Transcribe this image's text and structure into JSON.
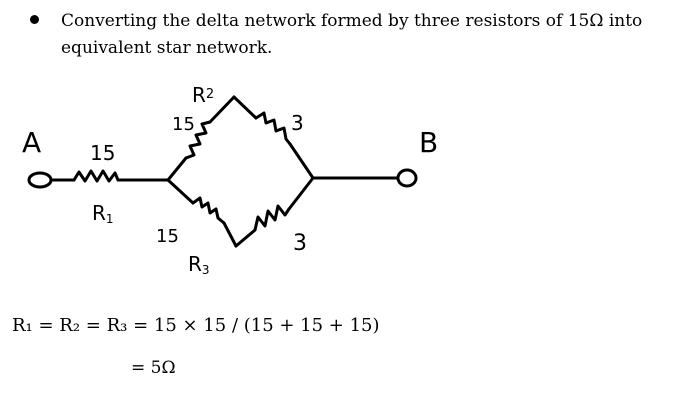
{
  "intro": {
    "text": "Converting the delta network formed by three resistors of 15Ω into equivalent star network."
  },
  "diagram": {
    "terminal_a": "A",
    "terminal_b": "B",
    "r1_value": "15",
    "r1_name": "R",
    "r1_sub": "1",
    "r2_name": "R",
    "r2_sub": "2",
    "upper_left_value": "15",
    "upper_right_value": "3",
    "lower_left_value": "15",
    "lower_right_value": "3",
    "r3_name": "R",
    "r3_sub": "3"
  },
  "formula": {
    "line1": "R₁ = R₂ = R₃ = 15 × 15 / (15 + 15 + 15)",
    "line2": "= 5Ω"
  }
}
